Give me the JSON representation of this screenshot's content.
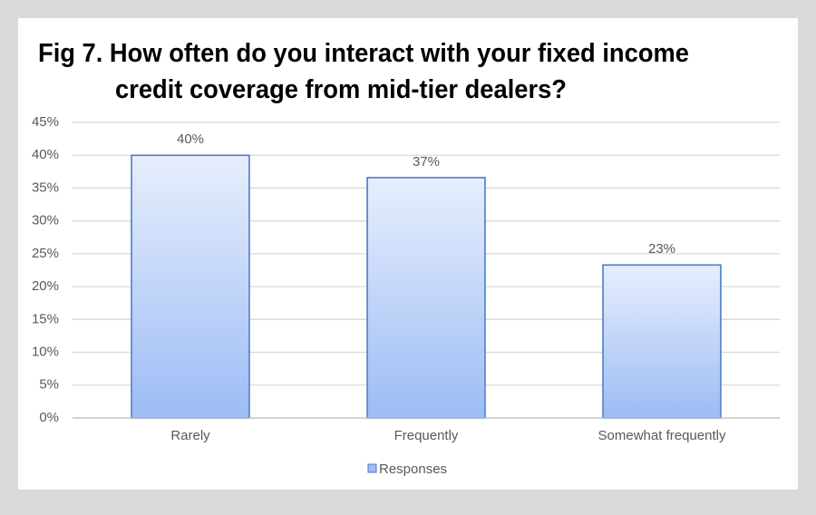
{
  "chart_data": {
    "type": "bar",
    "title": [
      "Fig 7. How often do you interact with your fixed income",
      "credit coverage from mid-tier dealers?"
    ],
    "categories": [
      "Rarely",
      "Frequently",
      "Somewhat frequently"
    ],
    "series": [
      {
        "name": "Responses",
        "color": "#9dbcf5",
        "values": [
          40,
          36.6,
          23.3
        ],
        "value_labels": [
          "40%",
          "37%",
          "23%"
        ]
      }
    ],
    "ylim": [
      0,
      45
    ],
    "yticks": [
      {
        "value": 0,
        "label": "0%"
      },
      {
        "value": 5,
        "label": "5%"
      },
      {
        "value": 10,
        "label": "10%"
      },
      {
        "value": 15,
        "label": "15%"
      },
      {
        "value": 20,
        "label": "20%"
      },
      {
        "value": 25,
        "label": "25%"
      },
      {
        "value": 30,
        "label": "30%"
      },
      {
        "value": 35,
        "label": "35%"
      },
      {
        "value": 40,
        "label": "40%"
      },
      {
        "value": 45,
        "label": "45%"
      }
    ],
    "grid": true,
    "legend": "bottom"
  }
}
